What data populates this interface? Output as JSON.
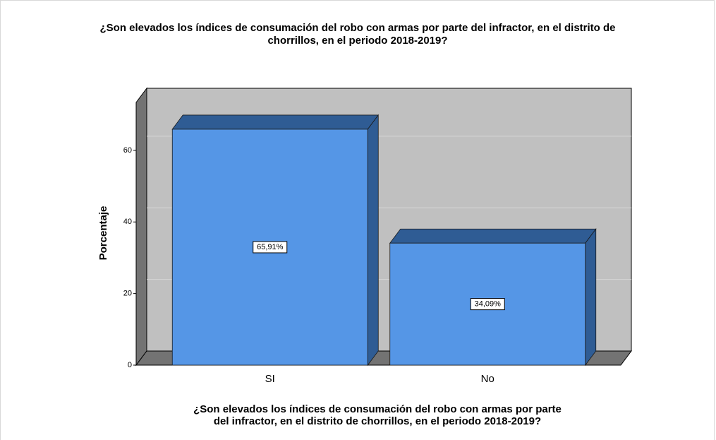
{
  "chart_data": {
    "type": "bar",
    "title": [
      "¿Son elevados los índices de consumación del robo con armas por parte del infractor, en el distrito de",
      "chorrillos, en el periodo 2018-2019?"
    ],
    "x_label": [
      "¿Son elevados los índices de consumación del robo con armas por parte",
      "del infractor, en el distrito de chorrillos, en el periodo 2018-2019?"
    ],
    "y_label": "Porcentaje",
    "categories": [
      "SI",
      "No"
    ],
    "values": [
      65.91,
      34.09
    ],
    "value_labels": [
      "65,91%",
      "34,09%"
    ],
    "color": "#5596e6",
    "ylim": [
      0,
      73.4
    ],
    "yticks": [
      0,
      20,
      40,
      60
    ],
    "grid": true
  }
}
